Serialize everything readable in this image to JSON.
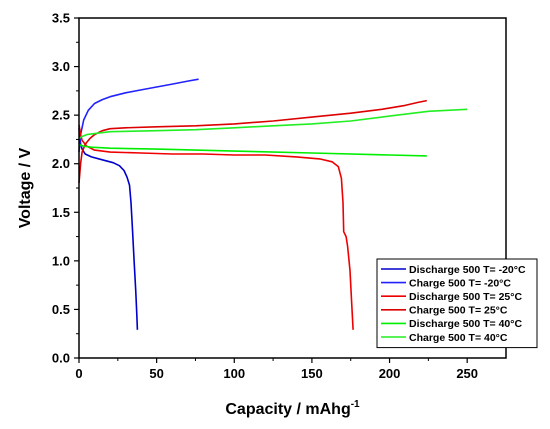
{
  "chart_data": {
    "type": "line",
    "xlabel": "Capacity / mAhg",
    "xlabel_sup": "-1",
    "ylabel": "Voltage / V",
    "xlim": [
      0,
      275
    ],
    "ylim": [
      0,
      3.5
    ],
    "x_ticks": [
      0,
      50,
      100,
      150,
      200,
      250
    ],
    "y_ticks": [
      0.0,
      0.5,
      1.0,
      1.5,
      2.0,
      2.5,
      3.0,
      3.5
    ],
    "y_tick_labels": [
      "0.0",
      "0.5",
      "1.0",
      "1.5",
      "2.0",
      "2.5",
      "3.0",
      "3.5"
    ],
    "grid": false,
    "legend_position": "bottom-right",
    "series": [
      {
        "name": "Discharge 500 T= -20°C",
        "color": "#0000cc",
        "points": [
          [
            0,
            2.37
          ],
          [
            0.5,
            2.28
          ],
          [
            1,
            2.2
          ],
          [
            2,
            2.15
          ],
          [
            4,
            2.1
          ],
          [
            8,
            2.07
          ],
          [
            15,
            2.04
          ],
          [
            22,
            2.01
          ],
          [
            26,
            1.98
          ],
          [
            29,
            1.93
          ],
          [
            31,
            1.86
          ],
          [
            32.5,
            1.78
          ],
          [
            33.5,
            1.6
          ],
          [
            34.5,
            1.3
          ],
          [
            35.5,
            1.0
          ],
          [
            36.5,
            0.7
          ],
          [
            37.2,
            0.45
          ],
          [
            37.6,
            0.29
          ]
        ]
      },
      {
        "name": "Charge 500 T= -20°C",
        "color": "#2222ff",
        "points": [
          [
            0,
            2.12
          ],
          [
            1,
            2.3
          ],
          [
            3,
            2.45
          ],
          [
            6,
            2.55
          ],
          [
            10,
            2.62
          ],
          [
            15,
            2.66
          ],
          [
            20,
            2.69
          ],
          [
            30,
            2.73
          ],
          [
            40,
            2.76
          ],
          [
            50,
            2.79
          ],
          [
            60,
            2.82
          ],
          [
            70,
            2.85
          ],
          [
            77,
            2.87
          ]
        ]
      },
      {
        "name": "Discharge 500 T= 25°C",
        "color": "#ee0000",
        "points": [
          [
            0,
            2.4
          ],
          [
            1,
            2.3
          ],
          [
            2,
            2.24
          ],
          [
            5,
            2.18
          ],
          [
            10,
            2.14
          ],
          [
            20,
            2.12
          ],
          [
            40,
            2.11
          ],
          [
            60,
            2.1
          ],
          [
            80,
            2.1
          ],
          [
            100,
            2.09
          ],
          [
            120,
            2.09
          ],
          [
            140,
            2.07
          ],
          [
            155,
            2.05
          ],
          [
            163,
            2.02
          ],
          [
            167,
            1.97
          ],
          [
            169,
            1.85
          ],
          [
            170,
            1.6
          ],
          [
            170.5,
            1.3
          ],
          [
            172,
            1.25
          ],
          [
            173,
            1.15
          ],
          [
            174.5,
            0.9
          ],
          [
            175.5,
            0.6
          ],
          [
            176.5,
            0.29
          ]
        ]
      },
      {
        "name": "Charge 500 T= 25°C",
        "color": "#dd0000",
        "points": [
          [
            0,
            1.8
          ],
          [
            1,
            2.0
          ],
          [
            2,
            2.12
          ],
          [
            4,
            2.2
          ],
          [
            7,
            2.26
          ],
          [
            10,
            2.3
          ],
          [
            15,
            2.34
          ],
          [
            20,
            2.36
          ],
          [
            30,
            2.37
          ],
          [
            50,
            2.38
          ],
          [
            75,
            2.39
          ],
          [
            100,
            2.41
          ],
          [
            125,
            2.44
          ],
          [
            150,
            2.48
          ],
          [
            175,
            2.52
          ],
          [
            195,
            2.56
          ],
          [
            210,
            2.6
          ],
          [
            218,
            2.63
          ],
          [
            224,
            2.65
          ]
        ]
      },
      {
        "name": "Discharge 500 T= 40°C",
        "color": "#00ee00",
        "points": [
          [
            0,
            2.2
          ],
          [
            1,
            2.19
          ],
          [
            3,
            2.18
          ],
          [
            8,
            2.17
          ],
          [
            20,
            2.16
          ],
          [
            50,
            2.15
          ],
          [
            100,
            2.13
          ],
          [
            150,
            2.11
          ],
          [
            200,
            2.09
          ],
          [
            224,
            2.08
          ]
        ]
      },
      {
        "name": "Charge 500 T= 40°C",
        "color": "#22ee22",
        "points": [
          [
            0,
            2.26
          ],
          [
            2,
            2.28
          ],
          [
            5,
            2.3
          ],
          [
            10,
            2.31
          ],
          [
            20,
            2.33
          ],
          [
            50,
            2.34
          ],
          [
            75,
            2.35
          ],
          [
            100,
            2.37
          ],
          [
            125,
            2.39
          ],
          [
            150,
            2.41
          ],
          [
            175,
            2.44
          ],
          [
            200,
            2.49
          ],
          [
            225,
            2.54
          ],
          [
            250,
            2.56
          ]
        ]
      }
    ]
  }
}
